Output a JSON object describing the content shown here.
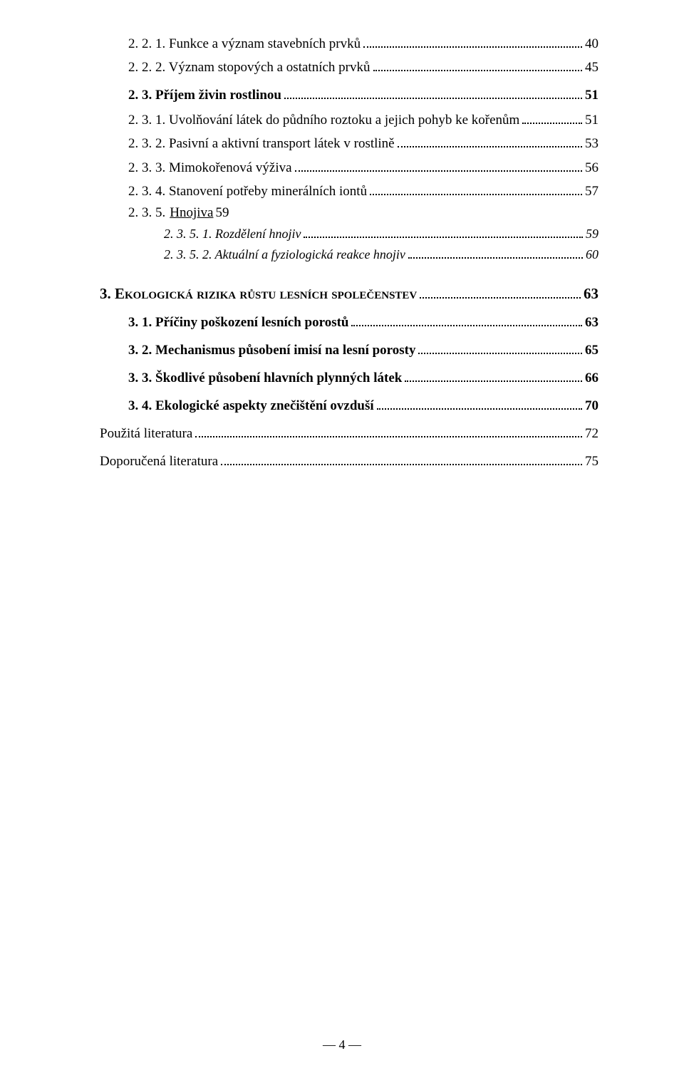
{
  "toc": {
    "entries": [
      {
        "cls": "lvl3",
        "label": "2. 2. 1.  Funkce a význam stavebních prvků",
        "page": "40"
      },
      {
        "cls": "lvl3",
        "label": "2. 2. 2.  Význam stopových a ostatních prvků",
        "page": "45"
      },
      {
        "cls": "lvl2",
        "label": "2. 3.  Příjem živin rostlinou",
        "page": "51"
      },
      {
        "cls": "lvl3",
        "label": "2. 3. 1.  Uvolňování látek do půdního roztoku a jejich pohyb ke kořenům",
        "page": "51"
      },
      {
        "cls": "lvl3",
        "label": "2. 3. 2.  Pasivní a aktivní transport látek v rostlině",
        "page": "53"
      },
      {
        "cls": "lvl3",
        "label": "2. 3. 3.  Mimokořenová výživa",
        "page": "56"
      },
      {
        "cls": "lvl3",
        "label": "2. 3. 4.  Stanovení potřeby minerálních iontů",
        "page": "57"
      },
      {
        "cls": "hnojiva",
        "num": "2. 3. 5.",
        "title": "Hnojiva",
        "page": "59"
      },
      {
        "cls": "lvl4",
        "label": "2. 3. 5. 1. Rozdělení hnojiv",
        "page": "59"
      },
      {
        "cls": "lvl4",
        "label": "2. 3. 5. 2. Aktuální a fyziologická reakce hnojiv",
        "page": "60"
      },
      {
        "cls": "lvl1",
        "num": "3.  ",
        "sc": "Ekologická rizika růstu lesních společenstev",
        "page": "63"
      },
      {
        "cls": "lvl2",
        "label": "3. 1.  Příčiny poškození lesních porostů",
        "page": "63"
      },
      {
        "cls": "lvl2",
        "label": "3. 2.  Mechanismus působení imisí na lesní porosty",
        "page": "65"
      },
      {
        "cls": "lvl2",
        "label": "3. 3.  Škodlivé působení hlavních plynných látek",
        "page": "66"
      },
      {
        "cls": "lvl2",
        "label": "3. 4.  Ekologické aspekty znečištění ovzduší",
        "page": "70"
      },
      {
        "cls": "lvl0",
        "label": "Použitá literatura",
        "page": "72"
      },
      {
        "cls": "lvl0",
        "label": "Doporučená literatura",
        "page": "75"
      }
    ]
  },
  "footer": "― 4 ―"
}
